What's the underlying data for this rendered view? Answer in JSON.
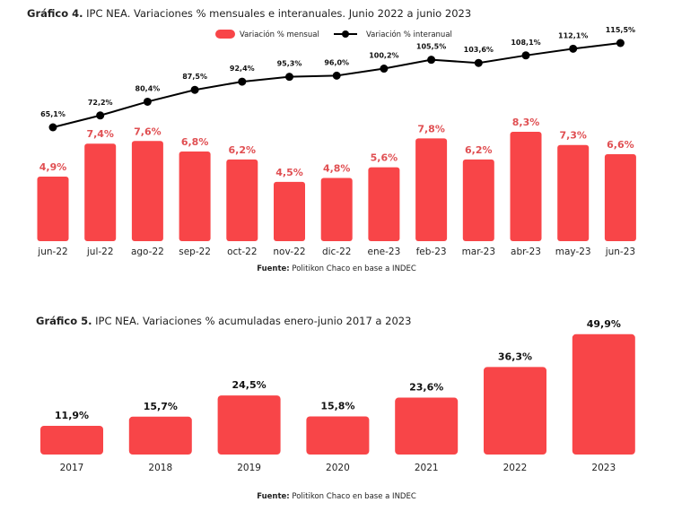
{
  "colors": {
    "bar": "#f84548",
    "bar_label": "#e04f52",
    "line": "#000000"
  },
  "chart_data": [
    {
      "type": "bar+line",
      "title_bold": "Gráfico 4.",
      "title": "IPC NEA. Variaciones % mensuales e interanuales. Junio 2022 a junio 2023",
      "legend": {
        "placement": "top-right",
        "entries": [
          "Variación % mensual",
          "Variación % interanual"
        ]
      },
      "categories": [
        "jun-22",
        "jul-22",
        "ago-22",
        "sep-22",
        "oct-22",
        "nov-22",
        "dic-22",
        "ene-23",
        "feb-23",
        "mar-23",
        "abr-23",
        "may-23",
        "jun-23"
      ],
      "series": [
        {
          "name": "Variación % mensual",
          "type": "bar",
          "values": [
            4.9,
            7.4,
            7.6,
            6.8,
            6.2,
            4.5,
            4.8,
            5.6,
            7.8,
            6.2,
            8.3,
            7.3,
            6.6
          ],
          "labels": [
            "4,9%",
            "7,4%",
            "7,6%",
            "6,8%",
            "6,2%",
            "4,5%",
            "4,8%",
            "5,6%",
            "7,8%",
            "6,2%",
            "8,3%",
            "7,3%",
            "6,6%"
          ]
        },
        {
          "name": "Variación % interanual",
          "type": "line",
          "values": [
            65.1,
            72.2,
            80.4,
            87.5,
            92.4,
            95.3,
            96.0,
            100.2,
            105.5,
            103.6,
            108.1,
            112.1,
            115.5
          ],
          "labels": [
            "65,1%",
            "72,2%",
            "80,4%",
            "87,5%",
            "92,4%",
            "95,3%",
            "96,0%",
            "100,2%",
            "105,5%",
            "103,6%",
            "108,1%",
            "112,1%",
            "115,5%"
          ]
        }
      ],
      "grid": false,
      "source_bold": "Fuente:",
      "source": "Politikon Chaco en base a INDEC"
    },
    {
      "type": "bar",
      "title_bold": "Gráfico 5.",
      "title": "IPC NEA. Variaciones % acumuladas enero-junio 2017 a 2023",
      "categories": [
        "2017",
        "2018",
        "2019",
        "2020",
        "2021",
        "2022",
        "2023"
      ],
      "values": [
        11.9,
        15.7,
        24.5,
        15.8,
        23.6,
        36.3,
        49.9
      ],
      "labels": [
        "11,9%",
        "15,7%",
        "24,5%",
        "15,8%",
        "23,6%",
        "36,3%",
        "49,9%"
      ],
      "grid": false,
      "source_bold": "Fuente:",
      "source": "Politikon Chaco en base a INDEC"
    }
  ]
}
